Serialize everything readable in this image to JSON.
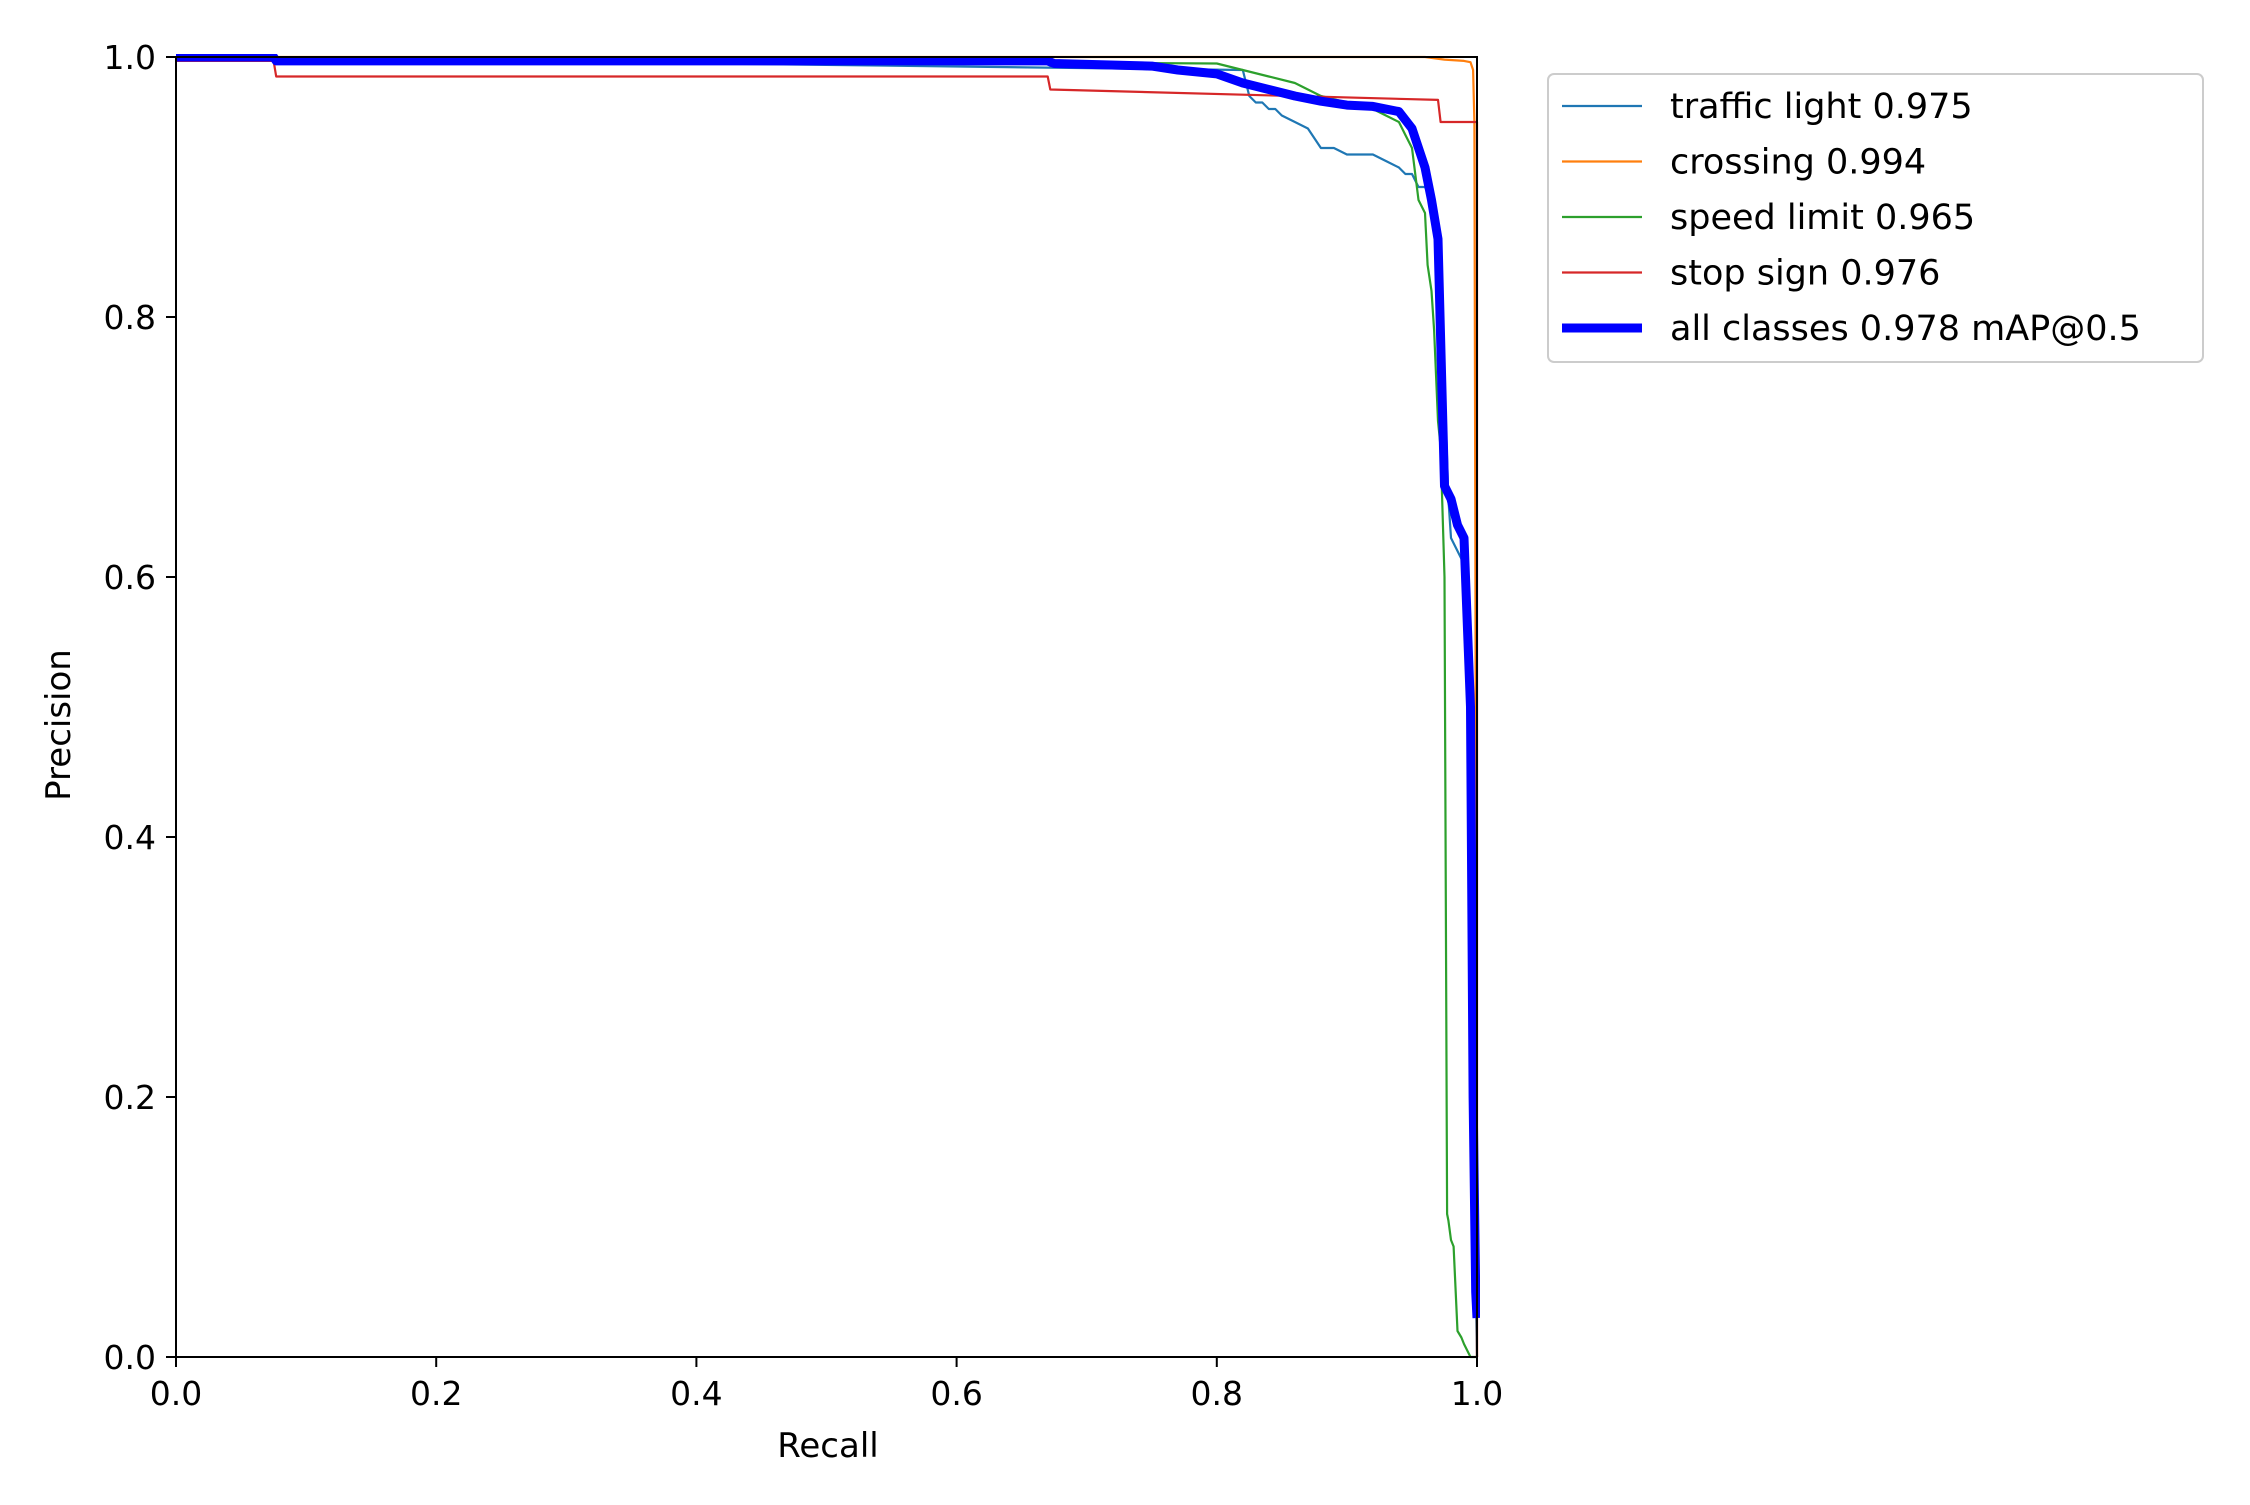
{
  "chart_data": {
    "type": "line",
    "title": "",
    "xlabel": "Recall",
    "ylabel": "Precision",
    "xlim": [
      0,
      1
    ],
    "ylim": [
      0,
      1
    ],
    "xticks": [
      "0.0",
      "0.2",
      "0.4",
      "0.6",
      "0.8",
      "1.0"
    ],
    "yticks": [
      "0.0",
      "0.2",
      "0.4",
      "0.6",
      "0.8",
      "1.0"
    ],
    "legend_position": "outside-top-right",
    "series": [
      {
        "name": "traffic light 0.975",
        "color": "#1f77b4",
        "x": [
          0.0,
          0.82,
          0.825,
          0.83,
          0.835,
          0.84,
          0.845,
          0.85,
          0.86,
          0.87,
          0.88,
          0.89,
          0.9,
          0.91,
          0.92,
          0.93,
          0.94,
          0.945,
          0.95,
          0.955,
          0.96,
          0.965,
          0.97,
          0.975,
          0.978,
          0.98,
          0.985,
          0.99,
          0.995,
          0.997,
          0.999,
          1.0
        ],
        "y": [
          1.0,
          0.99,
          0.97,
          0.965,
          0.965,
          0.96,
          0.96,
          0.955,
          0.95,
          0.945,
          0.93,
          0.93,
          0.925,
          0.925,
          0.925,
          0.92,
          0.915,
          0.91,
          0.91,
          0.9,
          0.9,
          0.89,
          0.85,
          0.75,
          0.66,
          0.63,
          0.62,
          0.61,
          0.5,
          0.2,
          0.05,
          0.0
        ]
      },
      {
        "name": "crossing 0.994",
        "color": "#ff7f0e",
        "x": [
          0.0,
          0.96,
          0.975,
          0.99,
          0.995,
          0.997,
          0.998,
          0.999,
          1.0
        ],
        "y": [
          1.0,
          1.0,
          0.998,
          0.997,
          0.996,
          0.99,
          0.95,
          0.5,
          0.0
        ]
      },
      {
        "name": "speed limit 0.965",
        "color": "#2ca02c",
        "x": [
          0.0,
          0.8,
          0.82,
          0.84,
          0.86,
          0.88,
          0.9,
          0.92,
          0.93,
          0.94,
          0.945,
          0.95,
          0.955,
          0.96,
          0.962,
          0.965,
          0.967,
          0.97,
          0.972,
          0.975,
          0.977,
          0.978,
          0.98,
          0.982,
          0.985,
          0.988,
          0.99,
          0.995,
          1.0
        ],
        "y": [
          1.0,
          0.995,
          0.99,
          0.985,
          0.98,
          0.97,
          0.965,
          0.96,
          0.955,
          0.95,
          0.94,
          0.93,
          0.89,
          0.88,
          0.84,
          0.82,
          0.79,
          0.72,
          0.7,
          0.6,
          0.11,
          0.105,
          0.09,
          0.085,
          0.02,
          0.015,
          0.01,
          0.0,
          0.0
        ]
      },
      {
        "name": "stop sign 0.976",
        "color": "#d62728",
        "x": [
          0.0,
          0.075,
          0.077,
          0.67,
          0.672,
          0.97,
          0.972,
          1.0,
          1.0
        ],
        "y": [
          0.997,
          0.997,
          0.985,
          0.985,
          0.975,
          0.967,
          0.95,
          0.95,
          0.0
        ]
      },
      {
        "name": "all classes 0.978 mAP@0.5",
        "color": "#0000ff",
        "x": [
          0.0,
          0.075,
          0.077,
          0.67,
          0.675,
          0.75,
          0.77,
          0.8,
          0.82,
          0.84,
          0.86,
          0.87,
          0.88,
          0.9,
          0.92,
          0.94,
          0.95,
          0.955,
          0.96,
          0.965,
          0.97,
          0.975,
          0.98,
          0.985,
          0.99,
          0.995,
          0.997,
          0.999,
          1.0
        ],
        "y": [
          1.0,
          1.0,
          0.997,
          0.997,
          0.995,
          0.993,
          0.99,
          0.987,
          0.98,
          0.975,
          0.97,
          0.968,
          0.966,
          0.963,
          0.962,
          0.958,
          0.945,
          0.93,
          0.915,
          0.89,
          0.86,
          0.67,
          0.66,
          0.64,
          0.63,
          0.5,
          0.2,
          0.05,
          0.03
        ]
      }
    ]
  }
}
